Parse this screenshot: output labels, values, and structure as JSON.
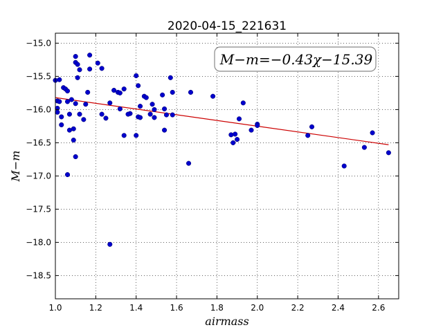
{
  "chart_data": {
    "type": "scatter",
    "title": "2020-04-15_221631",
    "xlabel": "airmass",
    "ylabel": "M−m",
    "xlim": [
      1.0,
      2.7
    ],
    "ylim": [
      -18.85,
      -14.85
    ],
    "y_inverted": true,
    "grid": true,
    "xticks": [
      1.0,
      1.2,
      1.4,
      1.6,
      1.8,
      2.0,
      2.2,
      2.4,
      2.6
    ],
    "xtick_labels": [
      "1.0",
      "1.2",
      "1.4",
      "1.6",
      "1.8",
      "2.0",
      "2.2",
      "2.4",
      "2.6"
    ],
    "yticks": [
      -15.0,
      -15.5,
      -16.0,
      -16.5,
      -17.0,
      -17.5,
      -18.0,
      -18.5
    ],
    "ytick_labels": [
      "−15.0",
      "−15.5",
      "−16.0",
      "−16.5",
      "−17.0",
      "−17.5",
      "−18.0",
      "−18.5"
    ],
    "annotation": "M−m=−0.43χ−15.39",
    "marker_color": "#0000cc",
    "fit_color": "#cc0000",
    "fit": {
      "slope": -0.43,
      "intercept": -15.39,
      "x_range": [
        1.0,
        2.65
      ]
    },
    "points": [
      [
        1.0,
        -15.56
      ],
      [
        1.01,
        -15.87
      ],
      [
        1.01,
        -15.98
      ],
      [
        1.02,
        -15.55
      ],
      [
        1.02,
        -15.88
      ],
      [
        1.01,
        -16.04
      ],
      [
        1.03,
        -16.11
      ],
      [
        1.03,
        -16.23
      ],
      [
        1.04,
        -15.67
      ],
      [
        1.05,
        -15.69
      ],
      [
        1.06,
        -15.72
      ],
      [
        1.06,
        -15.88
      ],
      [
        1.07,
        -16.07
      ],
      [
        1.07,
        -16.31
      ],
      [
        1.06,
        -16.98
      ],
      [
        1.08,
        -15.85
      ],
      [
        1.09,
        -16.29
      ],
      [
        1.09,
        -16.46
      ],
      [
        1.1,
        -15.2
      ],
      [
        1.1,
        -15.29
      ],
      [
        1.11,
        -15.32
      ],
      [
        1.11,
        -15.52
      ],
      [
        1.12,
        -15.4
      ],
      [
        1.1,
        -15.91
      ],
      [
        1.12,
        -16.07
      ],
      [
        1.1,
        -16.71
      ],
      [
        1.14,
        -16.15
      ],
      [
        1.15,
        -15.92
      ],
      [
        1.16,
        -15.74
      ],
      [
        1.17,
        -15.18
      ],
      [
        1.17,
        -15.39
      ],
      [
        1.21,
        -15.3
      ],
      [
        1.23,
        -15.38
      ],
      [
        1.23,
        -16.07
      ],
      [
        1.25,
        -16.13
      ],
      [
        1.27,
        -15.9
      ],
      [
        1.27,
        -18.03
      ],
      [
        1.29,
        -15.71
      ],
      [
        1.31,
        -15.74
      ],
      [
        1.32,
        -15.99
      ],
      [
        1.32,
        -15.75
      ],
      [
        1.34,
        -15.69
      ],
      [
        1.34,
        -16.39
      ],
      [
        1.37,
        -16.06
      ],
      [
        1.36,
        -16.07
      ],
      [
        1.4,
        -15.49
      ],
      [
        1.41,
        -15.64
      ],
      [
        1.4,
        -16.39
      ],
      [
        1.41,
        -16.11
      ],
      [
        1.42,
        -16.12
      ],
      [
        1.42,
        -15.95
      ],
      [
        1.44,
        -15.8
      ],
      [
        1.45,
        -15.82
      ],
      [
        1.47,
        -16.07
      ],
      [
        1.48,
        -15.92
      ],
      [
        1.49,
        -16.0
      ],
      [
        1.49,
        -16.12
      ],
      [
        1.53,
        -15.78
      ],
      [
        1.54,
        -15.99
      ],
      [
        1.54,
        -16.31
      ],
      [
        1.55,
        -16.08
      ],
      [
        1.57,
        -15.52
      ],
      [
        1.58,
        -15.74
      ],
      [
        1.58,
        -16.08
      ],
      [
        1.66,
        -16.81
      ],
      [
        1.67,
        -15.74
      ],
      [
        1.78,
        -15.8
      ],
      [
        1.87,
        -16.38
      ],
      [
        1.88,
        -16.5
      ],
      [
        1.89,
        -16.37
      ],
      [
        1.9,
        -16.45
      ],
      [
        1.91,
        -16.14
      ],
      [
        1.93,
        -15.9
      ],
      [
        1.97,
        -16.31
      ],
      [
        2.0,
        -16.22
      ],
      [
        2.0,
        -16.24
      ],
      [
        2.25,
        -16.39
      ],
      [
        2.27,
        -16.26
      ],
      [
        2.43,
        -16.85
      ],
      [
        2.53,
        -16.57
      ],
      [
        2.57,
        -16.35
      ],
      [
        2.65,
        -16.65
      ]
    ]
  }
}
